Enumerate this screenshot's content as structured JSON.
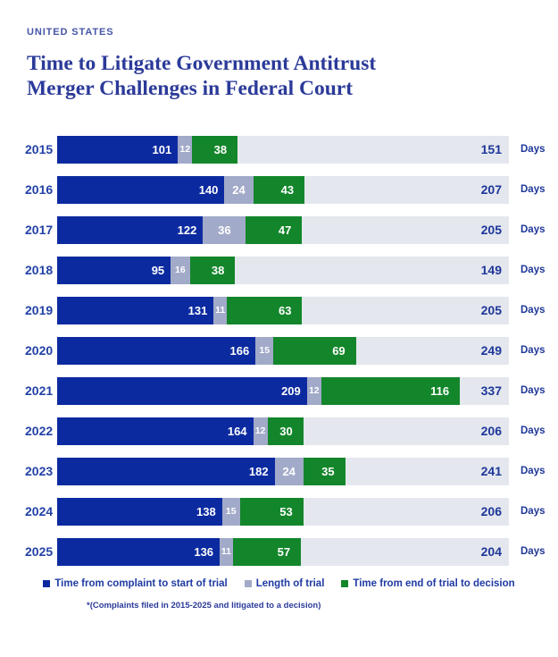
{
  "page": {
    "eyebrow": "UNITED STATES",
    "title_line1": "Time to Litigate Government Antitrust",
    "title_line2": "Merger Challenges in Federal Court"
  },
  "chart_data": {
    "type": "bar",
    "orientation": "horizontal",
    "stacked": true,
    "title": "Time to Litigate Government Antitrust Merger Challenges in Federal Court",
    "categories": [
      "2015",
      "2016",
      "2017",
      "2018",
      "2019",
      "2020",
      "2021",
      "2022",
      "2023",
      "2024",
      "2025"
    ],
    "series": [
      {
        "name": "Time from complaint to start of trial",
        "color": "#0c2aa0",
        "values": [
          101,
          140,
          122,
          95,
          131,
          166,
          209,
          164,
          182,
          138,
          136
        ]
      },
      {
        "name": "Length of trial",
        "color": "#a2aac9",
        "values": [
          12,
          24,
          36,
          16,
          11,
          15,
          12,
          12,
          24,
          15,
          11
        ]
      },
      {
        "name": "Time from end of trial to decision",
        "color": "#13862b",
        "values": [
          38,
          43,
          47,
          38,
          63,
          69,
          116,
          30,
          35,
          53,
          57
        ]
      }
    ],
    "totals": [
      151,
      207,
      205,
      149,
      205,
      249,
      337,
      206,
      241,
      206,
      204
    ],
    "unit_label": "Days",
    "xlim": [
      0,
      378
    ],
    "track_color": "#e4e7ee",
    "grid": false,
    "legend_position": "bottom",
    "footnote": "*(Complaints filed in 2015-2025 and litigated to a decision)"
  }
}
